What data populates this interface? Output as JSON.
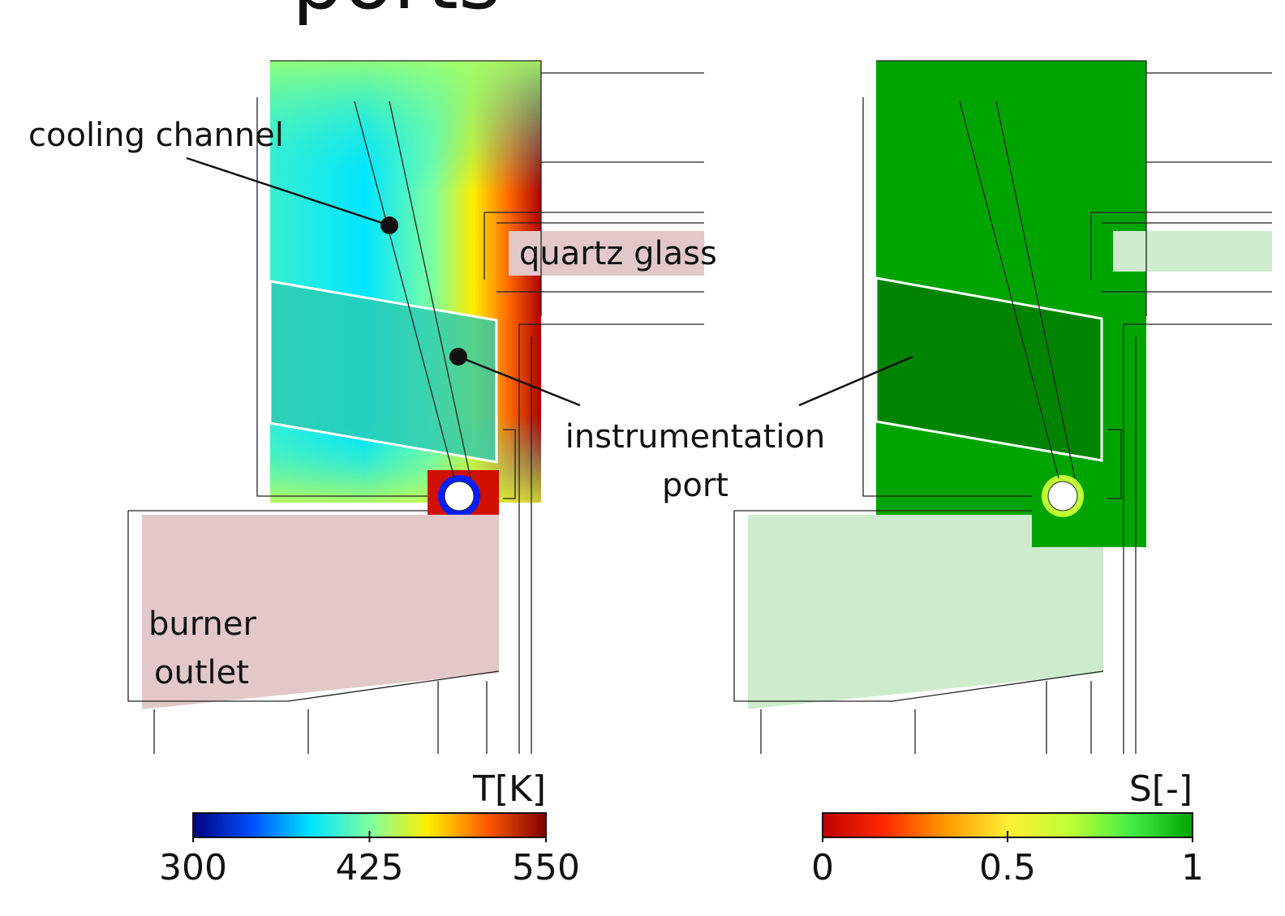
{
  "title": "ports",
  "annotations": {
    "cooling_channel": "cooling channel",
    "quartz_glass": "quartz glass",
    "instrumentation_port": [
      "instrumentation",
      "port"
    ],
    "burner_outlet": [
      "burner",
      "outlet"
    ]
  },
  "colorbars": [
    {
      "title": "T[K]",
      "range": [
        300,
        550
      ],
      "ticks": [
        300,
        425,
        550
      ],
      "colors": [
        "#00007f",
        "#0050ff",
        "#00e5ff",
        "#7dffa0",
        "#ffee00",
        "#ff5a00",
        "#7f0000"
      ]
    },
    {
      "title": "S[-]",
      "range": [
        0,
        1
      ],
      "ticks": [
        0,
        0.5,
        1
      ],
      "colors": [
        "#c00000",
        "#ff2a00",
        "#ff9900",
        "#ffee33",
        "#bfff33",
        "#44ee44",
        "#00a400"
      ]
    }
  ]
}
